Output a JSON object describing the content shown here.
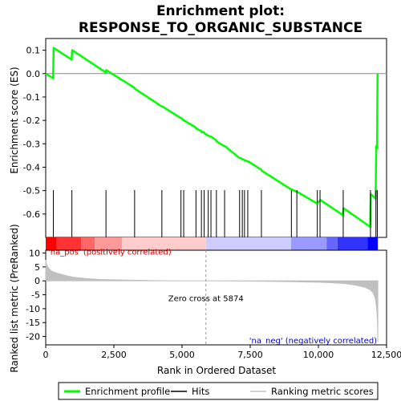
{
  "chart_data": {
    "type": "line",
    "title": "Enrichment plot:\nRESPONSE_TO_ORGANIC_SUBSTANCE",
    "title_lines": [
      "Enrichment plot:",
      "RESPONSE_TO_ORGANIC_SUBSTANCE"
    ],
    "xlabel": "Rank in Ordered Dataset",
    "xlim": [
      0,
      12500
    ],
    "x_ticks": [
      0,
      2500,
      5000,
      7500,
      10000,
      12500
    ],
    "x_tick_labels": [
      "0",
      "2,500",
      "5,000",
      "7,500",
      "10,000",
      "12,500"
    ],
    "top_panel": {
      "ylabel": "Enrichment score (ES)",
      "ylim": [
        -0.7,
        0.15
      ],
      "y_ticks": [
        0.1,
        0.0,
        -0.1,
        -0.2,
        -0.3,
        -0.4,
        -0.5,
        -0.6
      ],
      "y_tick_labels": [
        "0.1",
        "0.0",
        "-0.1",
        "-0.2",
        "-0.3",
        "-0.4",
        "-0.5",
        "-0.6"
      ],
      "grid": false,
      "series": [
        {
          "name": "Enrichment profile",
          "color": "#00ff00",
          "x": [
            0,
            270,
            290,
            950,
            970,
            2200,
            2220,
            3250,
            3270,
            4250,
            4270,
            4950,
            4970,
            5050,
            5070,
            5500,
            5520,
            5700,
            5720,
            5800,
            5820,
            5950,
            5970,
            6050,
            6070,
            6250,
            6270,
            6550,
            6570,
            7100,
            7120,
            7200,
            7220,
            7280,
            7300,
            7400,
            7420,
            7900,
            7920,
            9000,
            9020,
            9200,
            9220,
            9950,
            9970,
            10050,
            10070,
            10900,
            10920,
            11900,
            11920,
            12100,
            12120,
            12150,
            12170
          ],
          "y": [
            0.0,
            -0.02,
            0.11,
            0.06,
            0.1,
            0.005,
            0.015,
            -0.06,
            -0.065,
            -0.14,
            -0.14,
            -0.19,
            -0.19,
            -0.2,
            -0.2,
            -0.23,
            -0.235,
            -0.245,
            -0.25,
            -0.25,
            -0.255,
            -0.265,
            -0.265,
            -0.27,
            -0.27,
            -0.285,
            -0.29,
            -0.31,
            -0.31,
            -0.36,
            -0.36,
            -0.365,
            -0.365,
            -0.37,
            -0.37,
            -0.375,
            -0.375,
            -0.41,
            -0.415,
            -0.495,
            -0.495,
            -0.505,
            -0.505,
            -0.555,
            -0.55,
            -0.545,
            -0.54,
            -0.605,
            -0.575,
            -0.655,
            -0.515,
            -0.535,
            -0.31,
            -0.32,
            0.0
          ]
        }
      ],
      "zero_line": 0.0
    },
    "hits": {
      "name": "Hits",
      "color": "#000000",
      "x": [
        280,
        960,
        2210,
        3260,
        4260,
        4960,
        5060,
        5510,
        5710,
        5810,
        5960,
        6060,
        6260,
        6560,
        7110,
        7210,
        7290,
        7410,
        7910,
        9010,
        9210,
        9960,
        10060,
        10910,
        11910,
        12110,
        12160
      ]
    },
    "rank_bar": {
      "colors": [
        "#ff0000",
        "#ff3333",
        "#ff6666",
        "#ff9999",
        "#ffcccc",
        "#ccccff",
        "#9999ff",
        "#6666ff",
        "#3333ff",
        "#0000ff"
      ],
      "segments_x": [
        0,
        400,
        1300,
        1800,
        2800,
        5874,
        9000,
        10300,
        10700,
        11800,
        12180
      ]
    },
    "bottom_panel": {
      "ylabel": "Ranked list metric (PreRanked)",
      "ylim": [
        -23,
        11
      ],
      "y_ticks": [
        10,
        5,
        0,
        -5,
        -10,
        -15,
        -20
      ],
      "y_tick_labels": [
        "10",
        "5",
        "0",
        "-5",
        "-10",
        "-15",
        "-20"
      ],
      "series": [
        {
          "name": "Ranking metric scores",
          "color": "#c0c0c0",
          "x": [
            0,
            30,
            100,
            200,
            400,
            700,
            1000,
            1500,
            2000,
            3000,
            4000,
            5000,
            5874,
            7000,
            8000,
            9000,
            10000,
            10500,
            11000,
            11400,
            11700,
            11900,
            12000,
            12080,
            12120,
            12150,
            12170,
            12180
          ],
          "y": [
            7.5,
            6.0,
            4.6,
            3.6,
            2.8,
            2.0,
            1.3,
            0.8,
            0.5,
            0.25,
            0.1,
            0.03,
            0.0,
            -0.05,
            -0.15,
            -0.3,
            -0.5,
            -0.7,
            -1.0,
            -1.6,
            -2.3,
            -3.2,
            -4.2,
            -6.0,
            -8.5,
            -11.5,
            -16.0,
            -22.0
          ]
        }
      ],
      "annotations": [
        {
          "text": "'na_pos' (positively correlated)",
          "color": "#cc0000",
          "x": 0,
          "y": 10.5
        },
        {
          "text": "Zero cross at 5874",
          "color": "#000000",
          "x": 5874,
          "y": -6.2
        },
        {
          "text": "'na_neg' (negatively correlated)",
          "color": "#0000cc",
          "x": 12150,
          "y": -21.3
        }
      ],
      "zero_cross_x": 5874
    },
    "legend": {
      "position": "bottom",
      "entries": [
        {
          "label": "Enrichment profile",
          "color": "#00ff00",
          "style": "line-thick"
        },
        {
          "label": "Hits",
          "color": "#000000",
          "style": "line-thin"
        },
        {
          "label": "Ranking metric scores",
          "color": "#c0c0c0",
          "style": "line-thin"
        }
      ]
    }
  }
}
